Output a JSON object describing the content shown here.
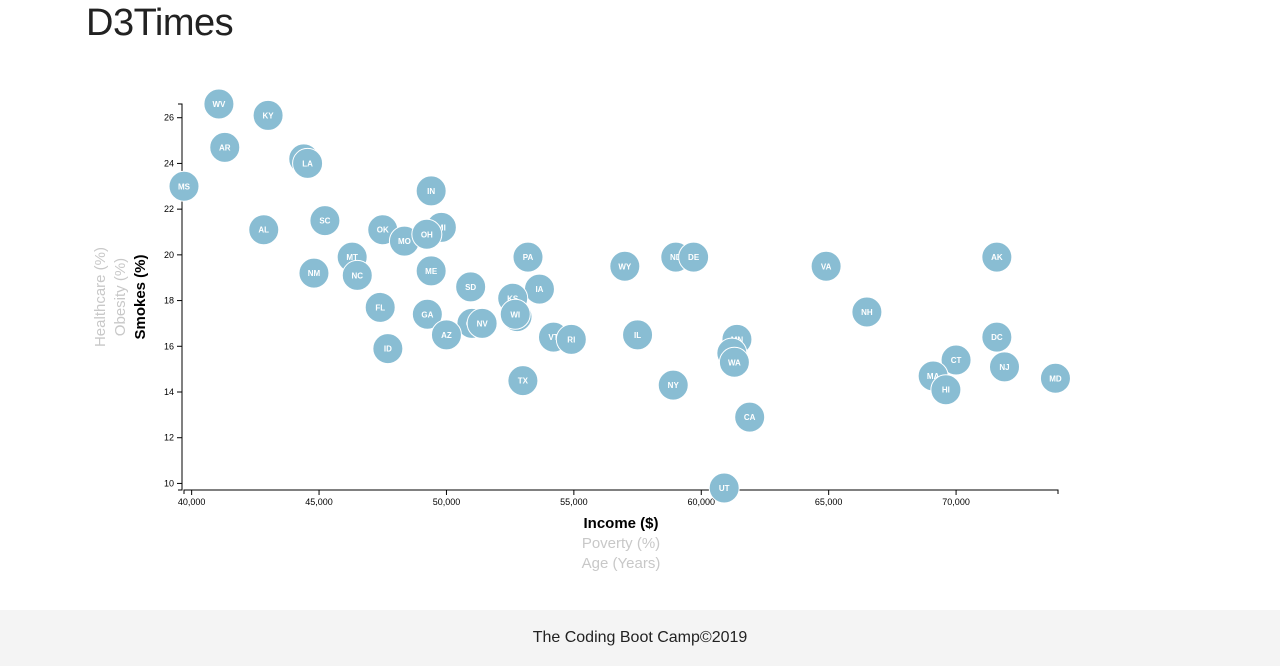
{
  "page": {
    "title": "D3Times",
    "footer": "The Coding Boot Camp©2019"
  },
  "colors": {
    "marker": "#89bdd3",
    "marker_stroke": "#ffffff",
    "active_label": "#000000",
    "inactive_label": "#c8c8c8"
  },
  "axes": {
    "x_options": [
      {
        "label": "Income ($)",
        "active": true
      },
      {
        "label": "Poverty (%)",
        "active": false
      },
      {
        "label": "Age (Years)",
        "active": false
      }
    ],
    "y_options": [
      {
        "label": "Smokes (%)",
        "active": true
      },
      {
        "label": "Obesity (%)",
        "active": false
      },
      {
        "label": "Healthcare (%)",
        "active": false
      }
    ]
  },
  "chart_data": {
    "type": "scatter",
    "xlabel": "Income ($)",
    "ylabel": "Smokes (%)",
    "xlim": [
      39700,
      74000
    ],
    "ylim": [
      9.8,
      26.6
    ],
    "x_ticks": [
      40000,
      45000,
      50000,
      55000,
      60000,
      65000,
      70000
    ],
    "x_tick_labels": [
      "40,000",
      "45,000",
      "50,000",
      "55,000",
      "60,000",
      "65,000",
      "70,000"
    ],
    "y_ticks": [
      10,
      12,
      14,
      16,
      18,
      20,
      22,
      24,
      26
    ],
    "y_tick_labels": [
      "10",
      "12",
      "14",
      "16",
      "18",
      "20",
      "22",
      "24",
      "26"
    ],
    "points": [
      {
        "abbr": "WV",
        "x": 41070,
        "y": 26.6
      },
      {
        "abbr": "KY",
        "x": 43000,
        "y": 26.1
      },
      {
        "abbr": "AR",
        "x": 41300,
        "y": 24.7
      },
      {
        "abbr": "TN",
        "x": 44400,
        "y": 24.2
      },
      {
        "abbr": "LA",
        "x": 44550,
        "y": 24.0
      },
      {
        "abbr": "MS",
        "x": 39700,
        "y": 23.0
      },
      {
        "abbr": "IN",
        "x": 49400,
        "y": 22.8
      },
      {
        "abbr": "AL",
        "x": 42830,
        "y": 21.1
      },
      {
        "abbr": "SC",
        "x": 45230,
        "y": 21.5
      },
      {
        "abbr": "OK",
        "x": 47500,
        "y": 21.1
      },
      {
        "abbr": "MI",
        "x": 49800,
        "y": 21.2
      },
      {
        "abbr": "MO",
        "x": 48350,
        "y": 20.6
      },
      {
        "abbr": "OH",
        "x": 49230,
        "y": 20.9
      },
      {
        "abbr": "MT",
        "x": 46300,
        "y": 19.9
      },
      {
        "abbr": "NM",
        "x": 44800,
        "y": 19.2
      },
      {
        "abbr": "NC",
        "x": 46500,
        "y": 19.1
      },
      {
        "abbr": "ME",
        "x": 49400,
        "y": 19.3
      },
      {
        "abbr": "PA",
        "x": 53200,
        "y": 19.9
      },
      {
        "abbr": "WY",
        "x": 57000,
        "y": 19.5
      },
      {
        "abbr": "ND",
        "x": 59000,
        "y": 19.9
      },
      {
        "abbr": "DE",
        "x": 59700,
        "y": 19.9
      },
      {
        "abbr": "VA",
        "x": 64900,
        "y": 19.5
      },
      {
        "abbr": "AK",
        "x": 71600,
        "y": 19.9
      },
      {
        "abbr": "SD",
        "x": 50950,
        "y": 18.6
      },
      {
        "abbr": "IA",
        "x": 53650,
        "y": 18.5
      },
      {
        "abbr": "KS",
        "x": 52600,
        "y": 18.1
      },
      {
        "abbr": "FL",
        "x": 47400,
        "y": 17.7
      },
      {
        "abbr": "GA",
        "x": 49250,
        "y": 17.4
      },
      {
        "abbr": "NE",
        "x": 52770,
        "y": 17.3
      },
      {
        "abbr": "WI",
        "x": 52700,
        "y": 17.4
      },
      {
        "abbr": "OR",
        "x": 51000,
        "y": 17.0
      },
      {
        "abbr": "NV",
        "x": 51400,
        "y": 17.0
      },
      {
        "abbr": "NH",
        "x": 66500,
        "y": 17.5
      },
      {
        "abbr": "AZ",
        "x": 50000,
        "y": 16.5
      },
      {
        "abbr": "VT",
        "x": 54200,
        "y": 16.4
      },
      {
        "abbr": "RI",
        "x": 54900,
        "y": 16.3
      },
      {
        "abbr": "IL",
        "x": 57500,
        "y": 16.5
      },
      {
        "abbr": "MN",
        "x": 61400,
        "y": 16.3
      },
      {
        "abbr": "DC",
        "x": 71600,
        "y": 16.4
      },
      {
        "abbr": "ID",
        "x": 47700,
        "y": 15.9
      },
      {
        "abbr": "CO",
        "x": 61200,
        "y": 15.7
      },
      {
        "abbr": "WA",
        "x": 61300,
        "y": 15.3
      },
      {
        "abbr": "CT",
        "x": 70000,
        "y": 15.4
      },
      {
        "abbr": "NJ",
        "x": 71900,
        "y": 15.1
      },
      {
        "abbr": "MA",
        "x": 69100,
        "y": 14.7
      },
      {
        "abbr": "MD",
        "x": 73900,
        "y": 14.6
      },
      {
        "abbr": "TX",
        "x": 53000,
        "y": 14.5
      },
      {
        "abbr": "NY",
        "x": 58900,
        "y": 14.3
      },
      {
        "abbr": "HI",
        "x": 69600,
        "y": 14.1
      },
      {
        "abbr": "CA",
        "x": 61900,
        "y": 12.9
      },
      {
        "abbr": "UT",
        "x": 60900,
        "y": 9.8
      }
    ]
  }
}
